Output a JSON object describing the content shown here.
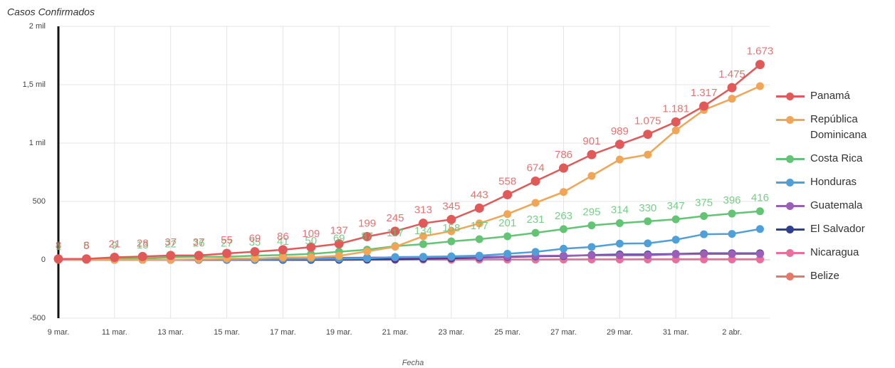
{
  "chart_data": {
    "type": "line",
    "title": "Casos Confirmados",
    "x_label": "Fecha",
    "categories": [
      "9 mar.",
      null,
      "11 mar.",
      null,
      "13 mar.",
      null,
      "15 mar.",
      null,
      "17 mar.",
      null,
      "19 mar.",
      null,
      "21 mar.",
      null,
      "23 mar.",
      null,
      "25 mar.",
      null,
      "27 mar.",
      null,
      "29 mar.",
      null,
      "31 mar.",
      null,
      "2 abr.",
      null
    ],
    "ylim": [
      -500,
      2000
    ],
    "yticks": [
      -500,
      0,
      500,
      {
        "value": 1000,
        "label": "1 mil"
      },
      {
        "value": 1500,
        "label": "1,5 mil"
      },
      {
        "value": 2000,
        "label": "2 mil"
      }
    ],
    "grid": true,
    "legend": "right",
    "series": [
      {
        "name": "Panamá",
        "color": "#e05a5a",
        "values": [
          8,
          8,
          21,
          28,
          37,
          37,
          55,
          69,
          86,
          109,
          137,
          199,
          245,
          313,
          345,
          443,
          558,
          674,
          786,
          901,
          989,
          1075,
          1181,
          1317,
          1475,
          1673
        ],
        "value_labels": [
          "8",
          "8",
          "21",
          "28",
          "37",
          "37",
          "55",
          "69",
          "86",
          "109",
          "137",
          "199",
          "245",
          "313",
          "345",
          "443",
          "558",
          "674",
          "786",
          "901",
          "989",
          "1.075",
          "1.181",
          "1.317",
          "1.475",
          "1.673"
        ]
      },
      {
        "name": "República Dominicana",
        "color": "#f0a656",
        "values": [
          0,
          0,
          0,
          0,
          1,
          5,
          11,
          11,
          21,
          21,
          34,
          72,
          112,
          202,
          245,
          312,
          392,
          488,
          581,
          719,
          859,
          901,
          1109,
          1284,
          1380,
          1488
        ]
      },
      {
        "name": "Costa Rica",
        "color": "#62c474",
        "values": [
          1,
          5,
          9,
          13,
          22,
          26,
          27,
          35,
          41,
          50,
          69,
          87,
          117,
          134,
          158,
          177,
          201,
          231,
          263,
          295,
          314,
          330,
          347,
          375,
          396,
          416
        ]
      },
      {
        "name": "Honduras",
        "color": "#4f9fd8",
        "values": [
          0,
          0,
          0,
          0,
          0,
          2,
          2,
          3,
          6,
          8,
          9,
          12,
          24,
          26,
          30,
          36,
          52,
          68,
          95,
          110,
          139,
          141,
          172,
          219,
          222,
          264
        ]
      },
      {
        "name": "Guatemala",
        "color": "#9b5fb8",
        "values": [
          0,
          0,
          0,
          0,
          1,
          1,
          2,
          6,
          9,
          12,
          17,
          19,
          20,
          21,
          24,
          25,
          28,
          34,
          36,
          38,
          39,
          39,
          47,
          50,
          50,
          50
        ]
      },
      {
        "name": "El Salvador",
        "color": "#2f3f92",
        "values": [
          0,
          0,
          0,
          0,
          0,
          0,
          0,
          0,
          0,
          0,
          1,
          3,
          5,
          9,
          13,
          19,
          24,
          30,
          32,
          41,
          46,
          46,
          50,
          56,
          56,
          56
        ]
      },
      {
        "name": "Nicaragua",
        "color": "#e8709e",
        "values": [
          0,
          0,
          0,
          0,
          0,
          0,
          0,
          0,
          1,
          1,
          1,
          2,
          2,
          2,
          2,
          2,
          2,
          2,
          4,
          4,
          4,
          5,
          5,
          5,
          5,
          5
        ]
      },
      {
        "name": "Belize",
        "color": "#e07b6c",
        "values": [
          0,
          0,
          0,
          0,
          0,
          0,
          0,
          0,
          0,
          0,
          0,
          0,
          0,
          1,
          1,
          2,
          2,
          2,
          2,
          3,
          3,
          3,
          3,
          3,
          3,
          3
        ]
      }
    ]
  }
}
